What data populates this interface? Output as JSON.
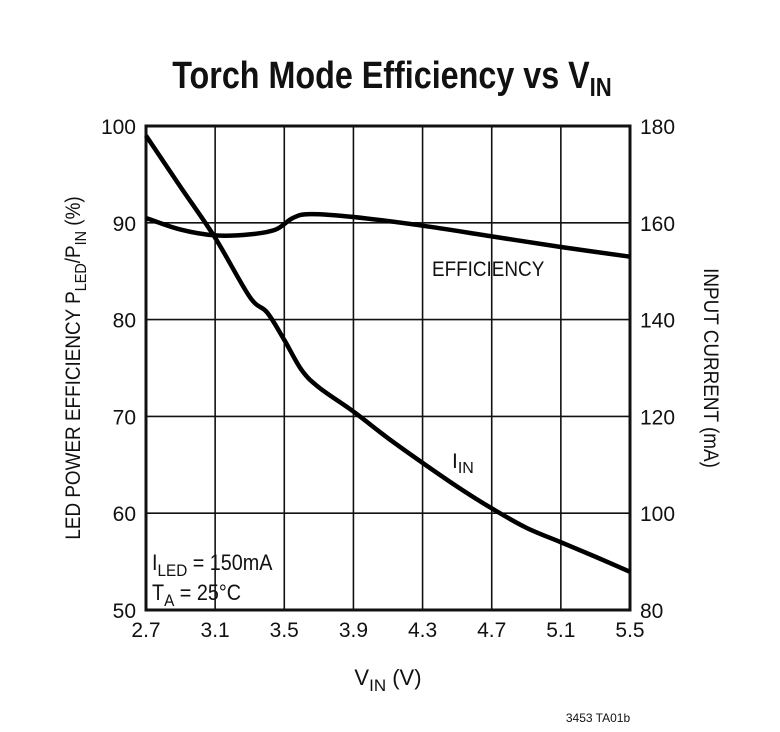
{
  "chart_data": {
    "type": "line",
    "title": {
      "main": "Torch Mode Efficiency vs V",
      "sub": "IN"
    },
    "xlabel": {
      "main": "V",
      "sub": "IN",
      "unit": " (V)"
    },
    "ylabel_left": {
      "a": "LED POWER EFFICIENCY P",
      "a_sub": "LED",
      "b": "/P",
      "b_sub": "IN",
      "c": " (%)"
    },
    "ylabel_right": "INPUT CURRENT (mA)",
    "xlim": [
      2.7,
      5.5
    ],
    "ylim_left": [
      50,
      100
    ],
    "ylim_right": [
      80,
      180
    ],
    "grid": true,
    "x_ticks": [
      "2.7",
      "3.1",
      "3.5",
      "3.9",
      "4.3",
      "4.7",
      "5.1",
      "5.5"
    ],
    "y_left_ticks": [
      "100",
      "90",
      "80",
      "70",
      "60",
      "50"
    ],
    "y_right_ticks": [
      "180",
      "160",
      "140",
      "120",
      "100",
      "80"
    ],
    "series": [
      {
        "name": "EFFICIENCY",
        "axis": "left",
        "x": [
          2.7,
          2.9,
          3.1,
          3.3,
          3.45,
          3.55,
          3.65,
          3.9,
          4.3,
          4.7,
          5.1,
          5.5
        ],
        "y": [
          90.5,
          89.3,
          88.7,
          88.8,
          89.3,
          90.5,
          90.9,
          90.6,
          89.7,
          88.6,
          87.5,
          86.5
        ]
      },
      {
        "name": "I",
        "name_sub": "IN",
        "axis": "right",
        "x": [
          2.7,
          2.9,
          3.1,
          3.3,
          3.4,
          3.5,
          3.6,
          3.7,
          3.9,
          4.1,
          4.3,
          4.5,
          4.7,
          4.9,
          5.1,
          5.3,
          5.5
        ],
        "y": [
          178,
          167.4,
          156.9,
          144.7,
          141.5,
          135.8,
          129.6,
          126,
          121,
          115.5,
          110.4,
          105.5,
          101,
          97,
          94,
          91,
          87.9
        ]
      }
    ],
    "annotations": {
      "iled": {
        "main": "I",
        "sub": "LED",
        "rest": " = 150mA"
      },
      "ta": {
        "main": "T",
        "sub": "A",
        "rest": " = 25°C"
      }
    },
    "footer": "3453 TA01b"
  }
}
